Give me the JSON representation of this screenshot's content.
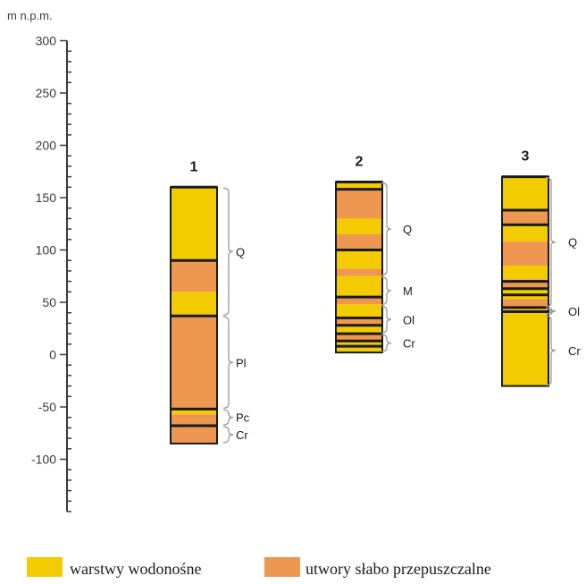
{
  "axis": {
    "unit": "m n.p.m.",
    "min": -150,
    "max": 300,
    "tick_labels": [
      300,
      250,
      200,
      150,
      100,
      50,
      0,
      -50,
      -100
    ]
  },
  "colors": {
    "aquifer": "#f2cc00",
    "aquitard": "#ee9750",
    "boundary": "#1a1a1a",
    "bracket": "#9a9a9a"
  },
  "legend": {
    "aquifer": "warstwy wodonośne",
    "aquitard": "utwory słabo przepuszczalne"
  },
  "chart_data": {
    "type": "stratigraphic-columns",
    "columns": [
      {
        "label": "1",
        "top": 160,
        "bottom": -85,
        "layers": [
          {
            "top": 160,
            "bottom": 90,
            "kind": "aquifer"
          },
          {
            "top": 90,
            "bottom": 60,
            "kind": "aquitard"
          },
          {
            "top": 60,
            "bottom": 37,
            "kind": "aquifer"
          },
          {
            "top": 37,
            "bottom": -52,
            "kind": "aquitard"
          },
          {
            "top": -52,
            "bottom": -57,
            "kind": "aquifer"
          },
          {
            "top": -57,
            "bottom": -85,
            "kind": "aquitard"
          }
        ],
        "boundaries": [
          90,
          37,
          -52,
          -68
        ],
        "units": [
          {
            "label": "Q",
            "top": 160,
            "bottom": 37
          },
          {
            "label": "Pl",
            "top": 37,
            "bottom": -52
          },
          {
            "label": "Pc",
            "top": -52,
            "bottom": -68
          },
          {
            "label": "Cr",
            "top": -68,
            "bottom": -85
          }
        ]
      },
      {
        "label": "2",
        "top": 165,
        "bottom": 2,
        "layers": [
          {
            "top": 165,
            "bottom": 158,
            "kind": "aquifer"
          },
          {
            "top": 158,
            "bottom": 130,
            "kind": "aquitard"
          },
          {
            "top": 130,
            "bottom": 115,
            "kind": "aquifer"
          },
          {
            "top": 115,
            "bottom": 100,
            "kind": "aquitard"
          },
          {
            "top": 100,
            "bottom": 82,
            "kind": "aquifer"
          },
          {
            "top": 82,
            "bottom": 75,
            "kind": "aquitard"
          },
          {
            "top": 75,
            "bottom": 55,
            "kind": "aquifer"
          },
          {
            "top": 55,
            "bottom": 48,
            "kind": "aquitard"
          },
          {
            "top": 48,
            "bottom": 35,
            "kind": "aquifer"
          },
          {
            "top": 35,
            "bottom": 27,
            "kind": "aquitard"
          },
          {
            "top": 27,
            "bottom": 20,
            "kind": "aquifer"
          },
          {
            "top": 20,
            "bottom": 14,
            "kind": "aquitard"
          },
          {
            "top": 14,
            "bottom": 8,
            "kind": "aquifer"
          },
          {
            "top": 8,
            "bottom": 2,
            "kind": "aquifer"
          }
        ],
        "boundaries": [
          158,
          100,
          55,
          35,
          28,
          20,
          13,
          8
        ],
        "units": [
          {
            "label": "Q",
            "top": 165,
            "bottom": 75
          },
          {
            "label": "M",
            "top": 75,
            "bottom": 47
          },
          {
            "label": "Ol",
            "top": 47,
            "bottom": 20
          },
          {
            "label": "Cr",
            "top": 20,
            "bottom": 2
          }
        ]
      },
      {
        "label": "3",
        "top": 170,
        "bottom": -30,
        "layers": [
          {
            "top": 170,
            "bottom": 138,
            "kind": "aquifer"
          },
          {
            "top": 138,
            "bottom": 123,
            "kind": "aquitard"
          },
          {
            "top": 123,
            "bottom": 108,
            "kind": "aquifer"
          },
          {
            "top": 108,
            "bottom": 85,
            "kind": "aquitard"
          },
          {
            "top": 85,
            "bottom": 72,
            "kind": "aquifer"
          },
          {
            "top": 72,
            "bottom": 62,
            "kind": "aquitard"
          },
          {
            "top": 62,
            "bottom": 53,
            "kind": "aquifer"
          },
          {
            "top": 53,
            "bottom": 43,
            "kind": "aquitard"
          },
          {
            "top": 43,
            "bottom": -30,
            "kind": "aquifer"
          }
        ],
        "boundaries": [
          138,
          124,
          70,
          63,
          57,
          45,
          41
        ],
        "units": [
          {
            "label": "Q",
            "top": 170,
            "bottom": 45
          },
          {
            "label": "Ol",
            "top": 45,
            "bottom": 38
          },
          {
            "label": "Cr",
            "top": 38,
            "bottom": -30
          }
        ]
      }
    ]
  }
}
